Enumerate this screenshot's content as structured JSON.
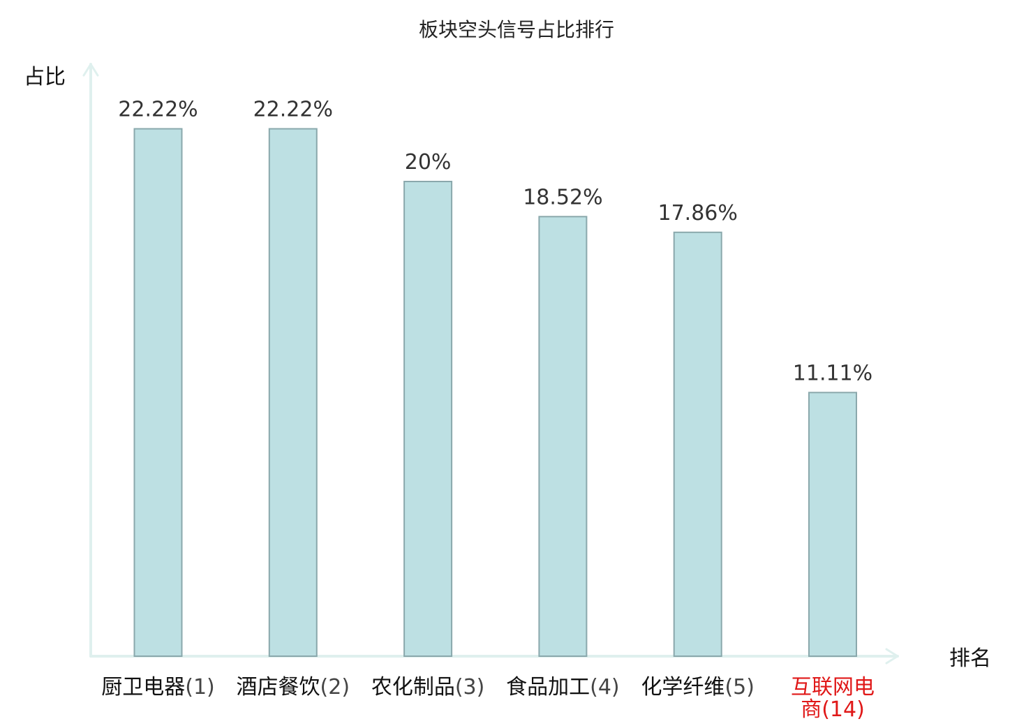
{
  "chart_data": {
    "type": "bar",
    "title": "板块空头信号占比排行",
    "ylabel": "占比",
    "xlabel": "排名",
    "ylim": [
      0,
      25
    ],
    "grid": false,
    "categories": [
      {
        "name": "厨卫电器",
        "rank": "(1)",
        "highlight": false
      },
      {
        "name": "酒店餐饮",
        "rank": "(2)",
        "highlight": false
      },
      {
        "name": "农化制品",
        "rank": "(3)",
        "highlight": false
      },
      {
        "name": "食品加工",
        "rank": "(4)",
        "highlight": false
      },
      {
        "name": "化学纤维",
        "rank": "(5)",
        "highlight": false
      },
      {
        "name": "互联网电商",
        "rank": "(14)",
        "highlight": true
      }
    ],
    "values": [
      22.22,
      22.22,
      20,
      18.52,
      17.86,
      11.11
    ],
    "value_labels": [
      "22.22%",
      "22.22%",
      "20%",
      "18.52%",
      "17.86%",
      "11.11%"
    ]
  },
  "colors": {
    "bar_fill": "#bde0e3",
    "bar_stroke": "#8aa8ac",
    "axis": "#dff0ee",
    "highlight": "#e01818"
  }
}
